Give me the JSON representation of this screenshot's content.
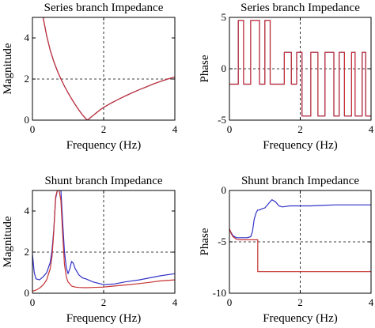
{
  "chart_data": [
    {
      "type": "line",
      "title": "Series branch Impedance",
      "xlabel": "Frequency (Hz)",
      "ylabel": "Magnitude",
      "xlim": [
        0,
        4
      ],
      "ylim": [
        0,
        5
      ],
      "xticks": [
        "0",
        "2",
        "4"
      ],
      "yticks": [
        "0",
        "2",
        "4"
      ],
      "grid": "dashed at x=2 and y=2",
      "series": [
        {
          "color": "#3232c8",
          "x": [
            0.3,
            0.4,
            0.5,
            0.6,
            0.7,
            0.8,
            0.9,
            1.0,
            1.1,
            1.2,
            1.3,
            1.4,
            1.5,
            1.55,
            1.6,
            1.7,
            1.8,
            1.9,
            2.0,
            2.2,
            2.4,
            2.6,
            2.8,
            3.0,
            3.2,
            3.4,
            3.6,
            3.8,
            4.0
          ],
          "y": [
            5.0,
            4.1,
            3.4,
            2.85,
            2.4,
            2.0,
            1.65,
            1.33,
            1.04,
            0.76,
            0.5,
            0.27,
            0.07,
            0.0,
            0.08,
            0.22,
            0.36,
            0.5,
            0.62,
            0.82,
            1.0,
            1.17,
            1.33,
            1.48,
            1.62,
            1.76,
            1.89,
            2.0,
            2.1
          ]
        },
        {
          "color": "#c83232",
          "x": [
            0.3,
            0.4,
            0.5,
            0.6,
            0.7,
            0.8,
            0.9,
            1.0,
            1.1,
            1.2,
            1.3,
            1.4,
            1.5,
            1.55,
            1.6,
            1.7,
            1.8,
            1.9,
            2.0,
            2.2,
            2.4,
            2.6,
            2.8,
            3.0,
            3.2,
            3.4,
            3.6,
            3.8,
            4.0
          ],
          "y": [
            5.0,
            4.1,
            3.4,
            2.85,
            2.4,
            2.0,
            1.65,
            1.33,
            1.04,
            0.76,
            0.5,
            0.27,
            0.07,
            0.0,
            0.08,
            0.22,
            0.36,
            0.5,
            0.62,
            0.82,
            1.0,
            1.17,
            1.33,
            1.48,
            1.62,
            1.76,
            1.89,
            2.0,
            2.1
          ]
        }
      ]
    },
    {
      "type": "line",
      "title": "Series branch Impedance",
      "xlabel": "Frequency (Hz)",
      "ylabel": "Phase",
      "xlim": [
        0,
        4
      ],
      "ylim": [
        -5,
        5
      ],
      "xticks": [
        "0",
        "2",
        "4"
      ],
      "yticks": [
        "-5",
        "0",
        "5"
      ],
      "grid": "dashed at x=2 and y=0",
      "series": [
        {
          "color": "#3232c8",
          "x": [
            0.0,
            0.25,
            0.25,
            0.4,
            0.4,
            0.6,
            0.6,
            0.85,
            0.85,
            1.0,
            1.0,
            1.15,
            1.15,
            1.35,
            1.35,
            1.55,
            1.55,
            1.75,
            1.75,
            1.9,
            1.9,
            2.05,
            2.05,
            2.3,
            2.3,
            2.5,
            2.5,
            2.7,
            2.7,
            2.95,
            2.95,
            3.1,
            3.1,
            3.25,
            3.25,
            3.45,
            3.45,
            3.55,
            3.55,
            3.75,
            3.75,
            3.85,
            3.85,
            4.0
          ],
          "y": [
            -1.5,
            -1.5,
            4.7,
            4.7,
            -1.5,
            -1.5,
            4.7,
            4.7,
            -1.5,
            -1.5,
            4.7,
            4.7,
            -1.5,
            -1.5,
            -1.5,
            -1.5,
            1.6,
            1.6,
            -1.5,
            -1.5,
            1.6,
            1.6,
            -4.6,
            -4.6,
            1.6,
            1.6,
            -4.6,
            -4.6,
            1.6,
            1.6,
            -4.6,
            -4.6,
            1.6,
            1.6,
            -4.6,
            -4.6,
            1.6,
            1.6,
            -4.6,
            -4.6,
            1.6,
            1.6,
            -4.6,
            -4.6
          ]
        },
        {
          "color": "#c83232",
          "x": [
            0.0,
            0.25,
            0.25,
            0.4,
            0.4,
            0.6,
            0.6,
            0.85,
            0.85,
            1.0,
            1.0,
            1.15,
            1.15,
            1.35,
            1.35,
            1.55,
            1.55,
            1.75,
            1.75,
            1.9,
            1.9,
            2.05,
            2.05,
            2.3,
            2.3,
            2.5,
            2.5,
            2.7,
            2.7,
            2.95,
            2.95,
            3.1,
            3.1,
            3.25,
            3.25,
            3.45,
            3.45,
            3.55,
            3.55,
            3.75,
            3.75,
            3.85,
            3.85,
            4.0
          ],
          "y": [
            -1.5,
            -1.5,
            4.7,
            4.7,
            -1.5,
            -1.5,
            4.7,
            4.7,
            -1.5,
            -1.5,
            4.7,
            4.7,
            -1.5,
            -1.5,
            -1.5,
            -1.5,
            1.6,
            1.6,
            -1.5,
            -1.5,
            1.6,
            1.6,
            -4.6,
            -4.6,
            1.6,
            1.6,
            -4.6,
            -4.6,
            1.6,
            1.6,
            -4.6,
            -4.6,
            1.6,
            1.6,
            -4.6,
            -4.6,
            1.6,
            1.6,
            -4.6,
            -4.6,
            1.6,
            1.6,
            -4.6,
            -4.6
          ]
        }
      ]
    },
    {
      "type": "line",
      "title": "Shunt branch Impedance",
      "xlabel": "Frequency (Hz)",
      "ylabel": "Magnitude",
      "xlim": [
        0,
        4
      ],
      "ylim": [
        0,
        5
      ],
      "xticks": [
        "0",
        "2",
        "4"
      ],
      "yticks": [
        "0",
        "2",
        "4"
      ],
      "grid": "dashed at x=2 and y=2",
      "series": [
        {
          "color": "#3232c8",
          "x": [
            0.0,
            0.05,
            0.1,
            0.2,
            0.3,
            0.4,
            0.5,
            0.55,
            0.6,
            0.65,
            0.7,
            0.75,
            0.8,
            0.85,
            0.9,
            0.95,
            1.0,
            1.05,
            1.1,
            1.15,
            1.2,
            1.3,
            1.4,
            1.5,
            1.7,
            2.0,
            2.3,
            2.6,
            3.0,
            3.3,
            3.6,
            4.0
          ],
          "y": [
            1.9,
            1.0,
            0.7,
            0.65,
            0.8,
            1.0,
            1.5,
            2.1,
            3.1,
            4.6,
            5.0,
            5.0,
            5.0,
            3.4,
            2.0,
            1.25,
            0.95,
            1.2,
            1.55,
            1.45,
            1.2,
            0.9,
            0.75,
            0.7,
            0.55,
            0.42,
            0.45,
            0.55,
            0.65,
            0.75,
            0.85,
            0.95
          ]
        },
        {
          "color": "#c83232",
          "x": [
            0.0,
            0.1,
            0.2,
            0.3,
            0.4,
            0.5,
            0.55,
            0.6,
            0.65,
            0.7,
            0.75,
            0.8,
            0.85,
            0.9,
            0.95,
            1.0,
            1.1,
            1.2,
            1.3,
            1.5,
            1.7,
            2.0,
            2.3,
            2.6,
            3.0,
            3.3,
            3.6,
            4.0
          ],
          "y": [
            0.1,
            0.15,
            0.25,
            0.4,
            0.65,
            1.2,
            1.8,
            3.0,
            4.7,
            5.0,
            5.0,
            4.5,
            2.8,
            1.4,
            0.8,
            0.55,
            0.35,
            0.3,
            0.28,
            0.27,
            0.28,
            0.3,
            0.35,
            0.4,
            0.47,
            0.53,
            0.6,
            0.65
          ]
        }
      ]
    },
    {
      "type": "line",
      "title": "Shunt branch Impedance",
      "xlabel": "Frequency (Hz)",
      "ylabel": "Phase",
      "xlim": [
        0,
        4
      ],
      "ylim": [
        -10,
        0
      ],
      "xticks": [
        "0",
        "2",
        "4"
      ],
      "yticks": [
        "-10",
        "-5",
        "0"
      ],
      "grid": "dashed at x=2 and y=-5",
      "series": [
        {
          "color": "#3232c8",
          "x": [
            0.0,
            0.05,
            0.1,
            0.2,
            0.3,
            0.4,
            0.5,
            0.6,
            0.65,
            0.7,
            0.75,
            0.8,
            0.85,
            0.9,
            1.0,
            1.1,
            1.2,
            1.3,
            1.4,
            1.5,
            1.7,
            2.0,
            2.3,
            2.6,
            3.0,
            3.3,
            3.6,
            4.0
          ],
          "y": [
            -3.8,
            -4.1,
            -4.4,
            -4.6,
            -4.6,
            -4.6,
            -4.6,
            -4.5,
            -4.0,
            -2.8,
            -2.2,
            -1.9,
            -1.9,
            -1.8,
            -1.7,
            -1.3,
            -0.9,
            -1.1,
            -1.5,
            -1.6,
            -1.5,
            -1.5,
            -1.5,
            -1.45,
            -1.4,
            -1.4,
            -1.4,
            -1.4
          ]
        },
        {
          "color": "#c83232",
          "x": [
            0.0,
            0.05,
            0.1,
            0.2,
            0.3,
            0.4,
            0.5,
            0.6,
            0.7,
            0.8,
            0.8,
            1.0,
            1.5,
            2.0,
            2.5,
            3.0,
            3.5,
            4.0
          ],
          "y": [
            -3.7,
            -4.2,
            -4.5,
            -4.75,
            -4.8,
            -4.8,
            -4.8,
            -4.8,
            -4.8,
            -4.8,
            -7.9,
            -7.9,
            -7.9,
            -7.9,
            -7.9,
            -7.9,
            -7.9,
            -7.9
          ]
        }
      ]
    }
  ]
}
